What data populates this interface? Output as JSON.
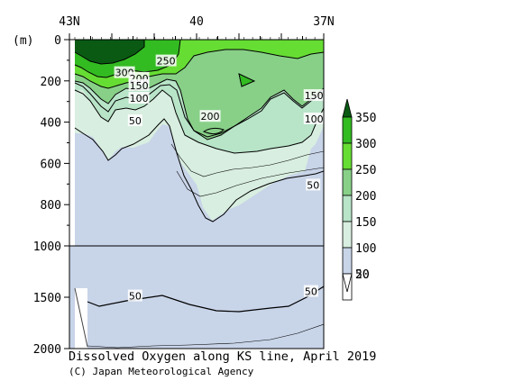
{
  "chart_data": {
    "type": "heatmap",
    "title": "Dissolved Oxygen along KS line, April 2019",
    "credit": "(C) Japan Meteorological Agency",
    "ylabel": "(m)",
    "x_ticks": [
      {
        "lat": 43,
        "label": "43N"
      },
      {
        "lat": 40,
        "label": "40"
      },
      {
        "lat": 37,
        "label": "37N"
      }
    ],
    "xlim": [
      43,
      37
    ],
    "y_ticks_upper": [
      0,
      200,
      400,
      600,
      800,
      1000
    ],
    "y_ticks_lower": [
      1500,
      2000
    ],
    "y_split": 1000,
    "ylim": [
      0,
      2000
    ],
    "colorbar": {
      "levels": [
        20,
        50,
        100,
        150,
        200,
        250,
        300,
        350
      ],
      "labels": [
        "20",
        "50",
        "100",
        "150",
        "200",
        "250",
        "300",
        "350"
      ],
      "colors": [
        "#ffffff",
        "#c8d4e8",
        "#d8eee0",
        "#b8e4c8",
        "#88d088",
        "#66dd33",
        "#33bb22",
        "#0a5a14"
      ]
    },
    "contour_labels": [
      {
        "text": "250",
        "lat": 40.72,
        "depth": 103
      },
      {
        "text": "300",
        "lat": 41.7,
        "depth": 160
      },
      {
        "text": "200",
        "lat": 41.36,
        "depth": 187
      },
      {
        "text": "150",
        "lat": 41.36,
        "depth": 222
      },
      {
        "text": "100",
        "lat": 41.36,
        "depth": 284
      },
      {
        "text": "50",
        "lat": 41.45,
        "depth": 393
      },
      {
        "text": "200",
        "lat": 39.68,
        "depth": 372
      },
      {
        "text": "150",
        "lat": 37.23,
        "depth": 271
      },
      {
        "text": "100",
        "lat": 37.23,
        "depth": 384
      },
      {
        "text": "50",
        "lat": 37.25,
        "depth": 705
      },
      {
        "text": "50",
        "lat": 41.45,
        "depth": 1487
      },
      {
        "text": "50",
        "lat": 37.3,
        "depth": 1443
      }
    ]
  }
}
